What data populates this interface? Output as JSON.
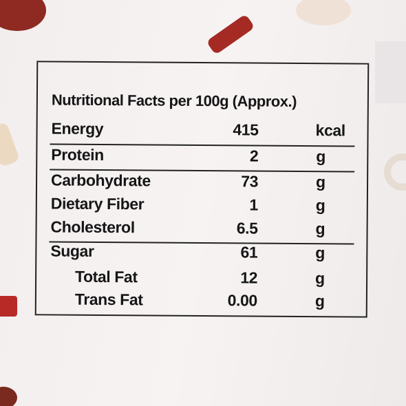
{
  "label": {
    "title": "Nutritional Facts per 100g (Approx.)",
    "rows": [
      {
        "name": "Energy",
        "value": "415",
        "unit": "kcal"
      },
      {
        "name": "Protein",
        "value": "2",
        "unit": "g"
      },
      {
        "name": "Carbohydrate",
        "value": "73",
        "unit": "g"
      },
      {
        "name": "Dietary Fiber",
        "value": "1",
        "unit": "g"
      },
      {
        "name": "Cholesterol",
        "value": "6.5",
        "unit": "g"
      },
      {
        "name": "Sugar",
        "value": "61",
        "unit": "g"
      },
      {
        "name": "Total Fat",
        "value": "12",
        "unit": "g"
      },
      {
        "name": "Trans Fat",
        "value": "0.00",
        "unit": "g"
      }
    ]
  }
}
